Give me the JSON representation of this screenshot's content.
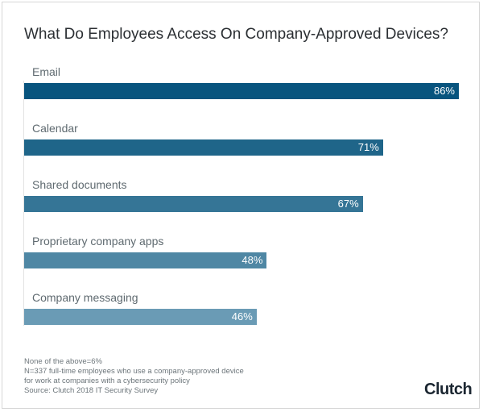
{
  "chart_data": {
    "type": "bar",
    "orientation": "horizontal",
    "title": "What Do Employees Access On Company-Approved Devices?",
    "categories": [
      "Email",
      "Calendar",
      "Shared documents",
      "Proprietary company apps",
      "Company messaging"
    ],
    "values": [
      86,
      71,
      67,
      48,
      46
    ],
    "value_labels": [
      "86%",
      "71%",
      "67%",
      "48%",
      "46%"
    ],
    "colors": [
      "#08547e",
      "#1f6589",
      "#357596",
      "#4f87a4",
      "#6a9bb5"
    ],
    "unit": "%",
    "xlim": [
      0,
      86
    ],
    "grid": false
  },
  "footer": {
    "notes": [
      "None of the above=6%",
      "N=337 full-time employees who use a company-approved device",
      "for work at companies with a cybersecurity policy",
      "Source: Clutch 2018 IT Security Survey"
    ],
    "logo": "Clutch"
  }
}
